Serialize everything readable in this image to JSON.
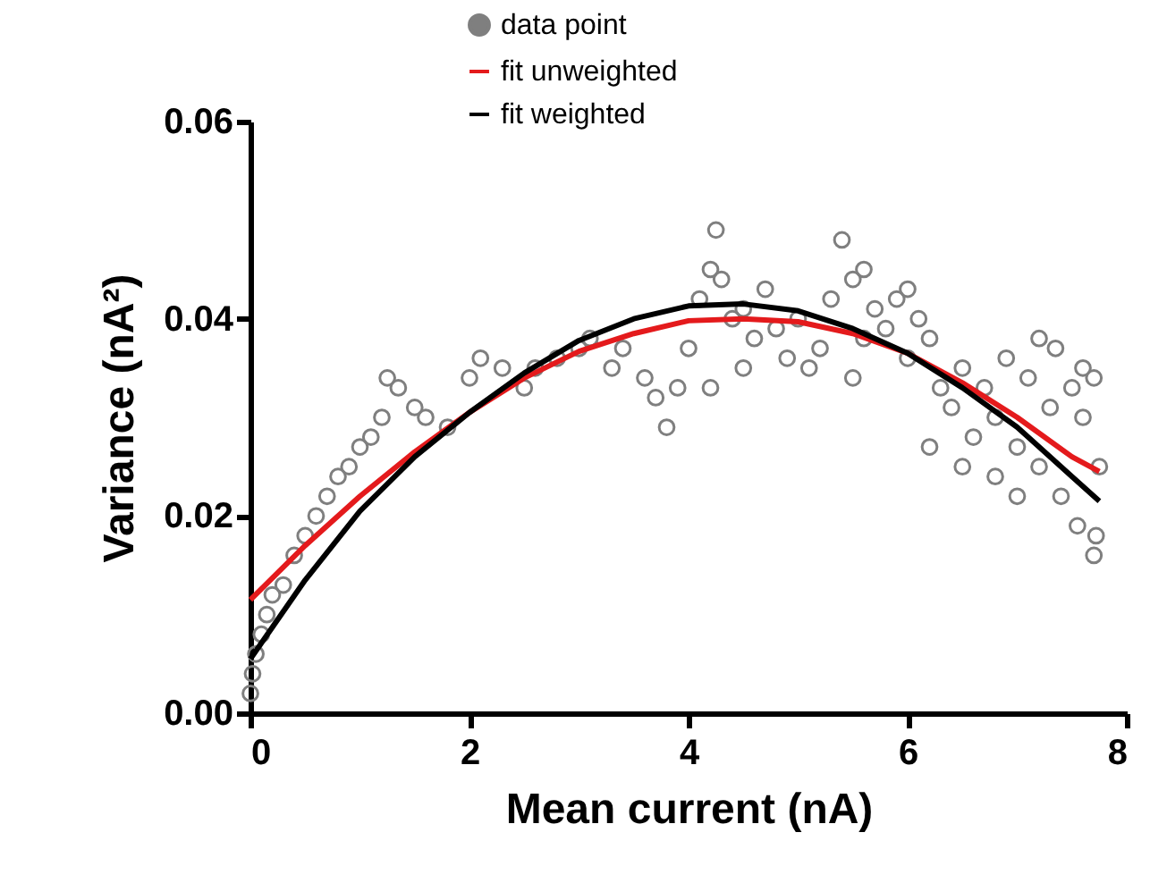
{
  "chart_data": {
    "type": "scatter",
    "xlabel": "Mean current (nA)",
    "ylabel": "Variance (nA²)",
    "xlim": [
      0,
      8
    ],
    "xticks": [
      0,
      2,
      4,
      6,
      8
    ],
    "ylim": [
      0,
      0.06
    ],
    "yticks": [
      {
        "value": 0,
        "label": "0.00"
      },
      {
        "value": 0.02,
        "label": "0.02"
      },
      {
        "value": 0.04,
        "label": "0.04"
      },
      {
        "value": 0.06,
        "label": "0.06"
      }
    ],
    "grid": false,
    "legend": "top left",
    "series": [
      {
        "name": "data point",
        "marker": "circle",
        "color": "#7f7f7f",
        "x": [
          0,
          0.02,
          0.05,
          0.1,
          0.15,
          0.2,
          0.3,
          0.4,
          0.5,
          0.6,
          0.7,
          0.8,
          0.9,
          1.0,
          1.1,
          1.2,
          1.25,
          1.35,
          1.5,
          1.6,
          1.8,
          2.0,
          2.1,
          2.3,
          2.5,
          2.6,
          2.8,
          3.0,
          3.1,
          3.3,
          3.4,
          3.6,
          3.7,
          3.8,
          3.9,
          4.0,
          4.1,
          4.2,
          4.25,
          4.3,
          4.4,
          4.5,
          4.6,
          4.7,
          4.8,
          5.0,
          5.1,
          5.2,
          5.3,
          5.4,
          5.5,
          5.6,
          5.7,
          5.8,
          5.9,
          6.0,
          6.1,
          6.2,
          6.3,
          6.4,
          6.5,
          6.6,
          6.7,
          6.8,
          6.9,
          7.0,
          7.1,
          7.2,
          7.3,
          7.35,
          7.4,
          7.5,
          7.55,
          7.6,
          7.7,
          7.7,
          7.75,
          7.72,
          6.8,
          7.0,
          5.5,
          6.2,
          4.5,
          4.9,
          5.6,
          6.0,
          7.2,
          4.2,
          7.6,
          6.5
        ],
        "values": [
          0.002,
          0.004,
          0.006,
          0.008,
          0.01,
          0.012,
          0.013,
          0.016,
          0.018,
          0.02,
          0.022,
          0.024,
          0.025,
          0.027,
          0.028,
          0.03,
          0.034,
          0.033,
          0.031,
          0.03,
          0.029,
          0.034,
          0.036,
          0.035,
          0.033,
          0.035,
          0.036,
          0.037,
          0.038,
          0.035,
          0.037,
          0.034,
          0.032,
          0.029,
          0.033,
          0.037,
          0.042,
          0.045,
          0.049,
          0.044,
          0.04,
          0.041,
          0.038,
          0.043,
          0.039,
          0.04,
          0.035,
          0.037,
          0.042,
          0.048,
          0.044,
          0.038,
          0.041,
          0.039,
          0.042,
          0.036,
          0.04,
          0.038,
          0.033,
          0.031,
          0.035,
          0.028,
          0.033,
          0.03,
          0.036,
          0.027,
          0.034,
          0.025,
          0.031,
          0.037,
          0.022,
          0.033,
          0.019,
          0.03,
          0.016,
          0.034,
          0.025,
          0.018,
          0.024,
          0.022,
          0.034,
          0.027,
          0.035,
          0.036,
          0.045,
          0.043,
          0.038,
          0.033,
          0.035,
          0.025
        ]
      },
      {
        "name": "fit unweighted",
        "type": "line",
        "color": "#e41a1c",
        "x": [
          0,
          0.5,
          1,
          1.5,
          2,
          2.5,
          3,
          3.5,
          4,
          4.5,
          5,
          5.5,
          6,
          6.5,
          7,
          7.5,
          7.75
        ],
        "values": [
          0.0115,
          0.017,
          0.022,
          0.0265,
          0.0305,
          0.034,
          0.0367,
          0.0385,
          0.0398,
          0.04,
          0.0397,
          0.0385,
          0.0365,
          0.0335,
          0.03,
          0.026,
          0.0245
        ]
      },
      {
        "name": "fit weighted",
        "type": "line",
        "color": "#000000",
        "x": [
          0,
          0.5,
          1,
          1.5,
          2,
          2.5,
          3,
          3.5,
          4,
          4.5,
          5,
          5.5,
          6,
          6.5,
          7,
          7.5,
          7.75
        ],
        "values": [
          0.0055,
          0.0135,
          0.0205,
          0.026,
          0.0305,
          0.0345,
          0.0378,
          0.04,
          0.0413,
          0.0415,
          0.0408,
          0.039,
          0.0365,
          0.033,
          0.029,
          0.024,
          0.0215
        ]
      }
    ]
  }
}
